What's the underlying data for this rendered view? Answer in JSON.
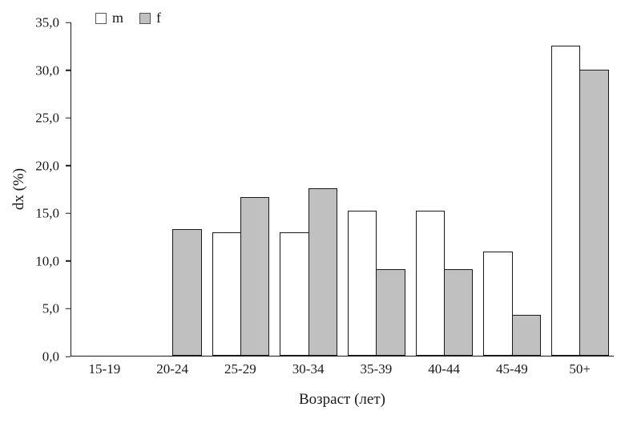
{
  "chart_data": {
    "type": "bar",
    "title": "",
    "categories": [
      "15-19",
      "20-24",
      "25-29",
      "30-34",
      "35-39",
      "40-44",
      "45-49",
      "50+"
    ],
    "series": [
      {
        "name": "m",
        "color": "#ffffff",
        "values": [
          0,
          0,
          13.0,
          13.0,
          15.2,
          15.2,
          10.9,
          32.6
        ]
      },
      {
        "name": "f",
        "color": "#c0c0c0",
        "values": [
          0,
          13.3,
          16.7,
          17.6,
          9.1,
          9.1,
          4.3,
          30.0
        ]
      }
    ],
    "xlabel": "Возраст (лет)",
    "ylabel": "dx (%)",
    "ylim": [
      0,
      35
    ],
    "ytick_step": 5,
    "ytick_labels": [
      "0,0",
      "5,0",
      "10,0",
      "15,0",
      "20,0",
      "25,0",
      "30,0",
      "35,0"
    ],
    "grid": false,
    "legend_position": "top-left",
    "bar_border_color": "#1a1a1a"
  }
}
